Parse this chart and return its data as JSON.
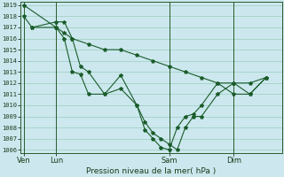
{
  "xlabel": "Pression niveau de la mer( hPa )",
  "bg_color": "#cce8ee",
  "grid_color": "#99ccbb",
  "line_color": "#1a5c2a",
  "ylim": [
    1006,
    1019
  ],
  "yticks": [
    1006,
    1007,
    1008,
    1009,
    1010,
    1011,
    1012,
    1013,
    1014,
    1015,
    1016,
    1017,
    1018,
    1019
  ],
  "xtick_labels": [
    "Ven",
    "Lun",
    "Sam",
    "Dim"
  ],
  "xtick_positions": [
    0,
    2,
    9,
    13
  ],
  "xlim": [
    -0.2,
    16
  ],
  "vlines": [
    0,
    2,
    9,
    13
  ],
  "series1_x": [
    0,
    2,
    2.5,
    3,
    4,
    5,
    6,
    7,
    8,
    9,
    10,
    11,
    12,
    13,
    14,
    15
  ],
  "series1_y": [
    1019,
    1017,
    1016.5,
    1016,
    1015.5,
    1015,
    1015,
    1014.5,
    1014,
    1013.5,
    1013,
    1012.5,
    1012,
    1012,
    1012,
    1012.5
  ],
  "series2_x": [
    0,
    0.5,
    2,
    2.5,
    3,
    3.5,
    4,
    5,
    6,
    7,
    7.5,
    8,
    8.5,
    9,
    9.5,
    10,
    10.5,
    11,
    12,
    13,
    14,
    15
  ],
  "series2_y": [
    1018,
    1017,
    1017.5,
    1017.5,
    1016,
    1013.5,
    1013,
    1011,
    1011.5,
    1010,
    1008.5,
    1007.5,
    1007,
    1006.5,
    1006,
    1008,
    1009,
    1009,
    1011,
    1012,
    1011,
    1012.5
  ],
  "series3_x": [
    0.5,
    2,
    2.5,
    3,
    3.5,
    4,
    5,
    6,
    7,
    7.5,
    8,
    8.5,
    9,
    9.5,
    10,
    10.5,
    11,
    12,
    13,
    14,
    15
  ],
  "series3_y": [
    1017,
    1017,
    1016,
    1013,
    1012.8,
    1011,
    1011,
    1012.7,
    1010,
    1007.8,
    1007,
    1006.2,
    1006,
    1008,
    1009,
    1009.2,
    1010,
    1012,
    1011,
    1011,
    1012.5
  ]
}
